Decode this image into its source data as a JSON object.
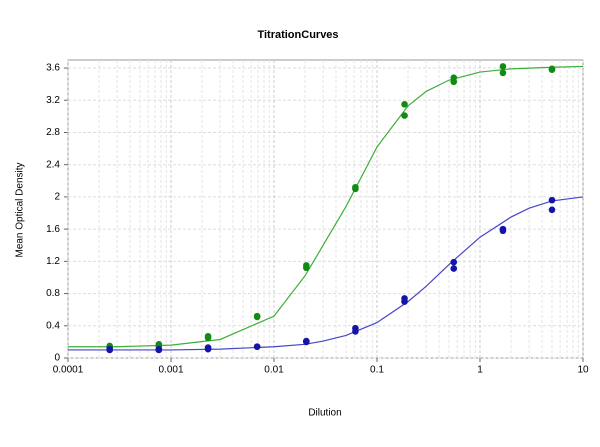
{
  "chart_data": {
    "type": "scatter",
    "title": "TitrationCurves",
    "xlabel": "Dilution",
    "ylabel": "Mean Optical Density",
    "xscale": "log",
    "xlim": [
      0.0001,
      10
    ],
    "xticks": [
      0.0001,
      0.001,
      0.01,
      0.1,
      1,
      10
    ],
    "ylim": [
      0,
      3.7
    ],
    "yticks": [
      0,
      0.4,
      0.8,
      1.2,
      1.6,
      2,
      2.4,
      2.8,
      3.2,
      3.6
    ],
    "grid": true,
    "minor_grid": true,
    "series": [
      {
        "mode": "markers",
        "color": "#138a13",
        "x": [
          0.000254,
          0.000254,
          0.000762,
          0.000762,
          0.00229,
          0.00229,
          0.00686,
          0.00686,
          0.0206,
          0.0206,
          0.0617,
          0.0617,
          0.185,
          0.185,
          0.556,
          0.556,
          1.67,
          1.67,
          5,
          5
        ],
        "values": [
          0.15,
          0.13,
          0.17,
          0.15,
          0.27,
          0.25,
          0.52,
          0.51,
          1.15,
          1.12,
          2.12,
          2.1,
          3.15,
          3.01,
          3.48,
          3.43,
          3.62,
          3.54,
          3.59,
          3.58
        ]
      },
      {
        "mode": "markers",
        "color": "#1414a8",
        "x": [
          0.000254,
          0.000254,
          0.000762,
          0.000762,
          0.00229,
          0.00229,
          0.00686,
          0.00686,
          0.0206,
          0.0206,
          0.0617,
          0.0617,
          0.185,
          0.185,
          0.556,
          0.556,
          1.67,
          1.67,
          5,
          5
        ],
        "values": [
          0.11,
          0.1,
          0.11,
          0.1,
          0.13,
          0.11,
          0.14,
          0.14,
          0.21,
          0.2,
          0.37,
          0.33,
          0.74,
          0.7,
          1.19,
          1.11,
          1.6,
          1.58,
          1.96,
          1.84
        ]
      },
      {
        "mode": "line",
        "color": "#3cae3c",
        "x": [
          0.0001,
          0.0003,
          0.001,
          0.003,
          0.01,
          0.02,
          0.03,
          0.05,
          0.1,
          0.2,
          0.3,
          0.5,
          1,
          2,
          5,
          10
        ],
        "values": [
          0.14,
          0.14,
          0.16,
          0.23,
          0.52,
          1.02,
          1.4,
          1.88,
          2.62,
          3.13,
          3.31,
          3.45,
          3.55,
          3.59,
          3.61,
          3.62
        ]
      },
      {
        "mode": "line",
        "color": "#4646c8",
        "x": [
          0.0001,
          0.001,
          0.003,
          0.01,
          0.02,
          0.03,
          0.05,
          0.1,
          0.2,
          0.3,
          0.5,
          1,
          2,
          3,
          5,
          10
        ],
        "values": [
          0.1,
          0.1,
          0.11,
          0.14,
          0.17,
          0.21,
          0.28,
          0.44,
          0.7,
          0.89,
          1.16,
          1.5,
          1.75,
          1.86,
          1.95,
          2.0
        ]
      }
    ]
  }
}
